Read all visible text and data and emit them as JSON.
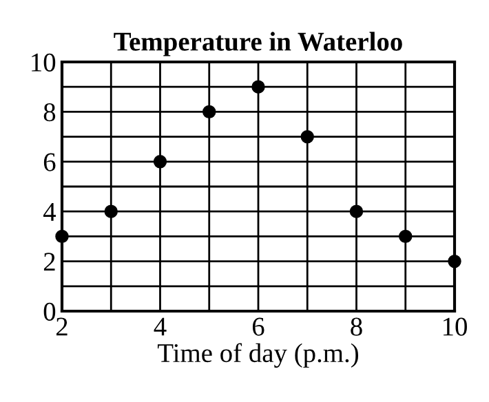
{
  "chart_data": {
    "type": "scatter",
    "title": "Temperature in Waterloo",
    "xlabel": "Time of day (p.m.)",
    "x": [
      2,
      3,
      4,
      5,
      6,
      7,
      8,
      9,
      10
    ],
    "series": [
      {
        "color": "#000000",
        "values": [
          3,
          4,
          6,
          8,
          9,
          7,
          4,
          3,
          2
        ]
      }
    ],
    "xlim": [
      2,
      10
    ],
    "ylim": [
      0,
      10
    ],
    "xticks": [
      2,
      4,
      6,
      8,
      10
    ],
    "yticks": [
      0,
      2,
      4,
      6,
      8,
      10
    ],
    "grid": true,
    "marker": "circle"
  }
}
